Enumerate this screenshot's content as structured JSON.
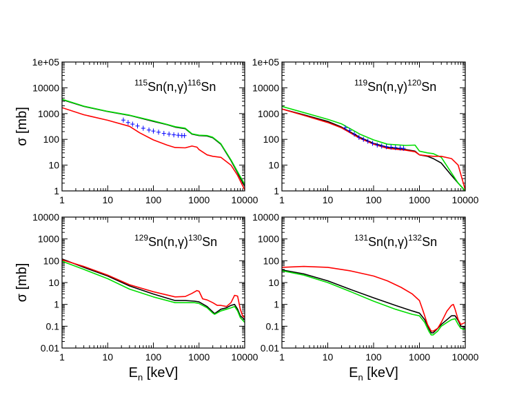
{
  "colors": {
    "black": "#000000",
    "red": "#ff0000",
    "green": "#00dd00",
    "blue": "#0000ff"
  },
  "chart_data": [
    {
      "type": "line",
      "title_parts": [
        "115",
        "Sn(n,γ)",
        "116",
        "Sn"
      ],
      "xlabel": "",
      "xlabel_sub": "",
      "ylabel": "σ [mb]",
      "xscale": "log",
      "yscale": "log",
      "xlim": [
        1,
        10000
      ],
      "ylim": [
        1,
        100000
      ],
      "xticks": [
        "1",
        "10",
        "100",
        "1000",
        "10000"
      ],
      "yticks": [
        "1",
        "10",
        "100",
        "1000",
        "10000",
        "1e+05"
      ],
      "series": [
        {
          "name": "black",
          "color": "#000000",
          "x": [
            1,
            3,
            10,
            30,
            100,
            200,
            300,
            500,
            700,
            1000,
            1500,
            2000,
            3000,
            5000,
            7000,
            10000
          ],
          "y": [
            3500,
            1900,
            1200,
            850,
            500,
            370,
            300,
            260,
            160,
            140,
            135,
            115,
            65,
            15,
            5,
            1.5
          ]
        },
        {
          "name": "green",
          "color": "#00dd00",
          "x": [
            1,
            3,
            10,
            30,
            100,
            200,
            300,
            500,
            700,
            1000,
            1500,
            2000,
            3000,
            5000,
            7000,
            10000
          ],
          "y": [
            3600,
            1950,
            1220,
            870,
            520,
            380,
            310,
            270,
            165,
            145,
            140,
            120,
            68,
            16,
            5.5,
            1.8
          ]
        },
        {
          "name": "red",
          "color": "#ff0000",
          "x": [
            1,
            3,
            10,
            30,
            50,
            100,
            200,
            300,
            500,
            700,
            900,
            1000,
            1500,
            2000,
            3000,
            5000,
            7000,
            10000
          ],
          "y": [
            1700,
            900,
            550,
            320,
            180,
            95,
            60,
            48,
            47,
            55,
            50,
            40,
            25,
            22,
            20,
            10,
            4,
            1.1
          ]
        },
        {
          "name": "experiment",
          "color": "#0000ff",
          "x": [
            22,
            28,
            35,
            45,
            60,
            80,
            100,
            130,
            170,
            220,
            280,
            350,
            420,
            480
          ],
          "y": [
            560,
            450,
            390,
            330,
            270,
            230,
            210,
            190,
            170,
            160,
            150,
            145,
            140,
            140
          ],
          "style": "errorbars"
        }
      ]
    },
    {
      "type": "line",
      "title_parts": [
        "119",
        "Sn(n,γ)",
        "120",
        "Sn"
      ],
      "xlabel": "",
      "xlabel_sub": "",
      "ylabel": "",
      "xscale": "log",
      "yscale": "log",
      "xlim": [
        1,
        10000
      ],
      "ylim": [
        1,
        100000
      ],
      "xticks": [
        "1",
        "10",
        "100",
        "1000",
        "10000"
      ],
      "yticks": [
        "1",
        "10",
        "100",
        "1000",
        "10000",
        "1e+05"
      ],
      "series": [
        {
          "name": "black",
          "color": "#000000",
          "x": [
            1,
            3,
            10,
            20,
            50,
            100,
            200,
            500,
            800,
            1000,
            1500,
            2000,
            3000,
            5000,
            7000,
            10000
          ],
          "y": [
            1500,
            900,
            500,
            300,
            120,
            70,
            50,
            40,
            35,
            25,
            22,
            18,
            12,
            4,
            2,
            1
          ]
        },
        {
          "name": "green",
          "color": "#00dd00",
          "x": [
            1,
            3,
            10,
            20,
            50,
            100,
            200,
            500,
            800,
            1000,
            1500,
            2000,
            3000,
            5000,
            7000,
            10000
          ],
          "y": [
            1900,
            1100,
            600,
            400,
            160,
            95,
            65,
            58,
            60,
            35,
            30,
            28,
            20,
            5,
            2,
            1
          ]
        },
        {
          "name": "red",
          "color": "#ff0000",
          "x": [
            1,
            3,
            10,
            20,
            50,
            100,
            200,
            500,
            800,
            1000,
            1500,
            2000,
            3000,
            5000,
            7000,
            10000
          ],
          "y": [
            1500,
            850,
            450,
            280,
            110,
            65,
            45,
            38,
            33,
            25,
            23,
            22,
            22,
            18,
            10,
            1.1
          ]
        },
        {
          "name": "experiment",
          "color": "#0000ff",
          "x": [
            24,
            30,
            38,
            48,
            60,
            75,
            95,
            120,
            150,
            190,
            240,
            300,
            380,
            450
          ],
          "y": [
            280,
            220,
            160,
            120,
            100,
            85,
            70,
            60,
            55,
            52,
            50,
            48,
            46,
            45
          ],
          "style": "errorbars"
        }
      ]
    },
    {
      "type": "line",
      "title_parts": [
        "129",
        "Sn(n,γ)",
        "130",
        "Sn"
      ],
      "xlabel": "E",
      "xlabel_sub": "n",
      "xlabel_unit": " [keV]",
      "ylabel": "σ [mb]",
      "xscale": "log",
      "yscale": "log",
      "xlim": [
        1,
        10000
      ],
      "ylim": [
        0.01,
        10000
      ],
      "xticks": [
        "1",
        "10",
        "100",
        "1000",
        "10000"
      ],
      "yticks": [
        "0.01",
        "0.1",
        "1",
        "10",
        "100",
        "1000",
        "10000"
      ],
      "series": [
        {
          "name": "black",
          "color": "#000000",
          "x": [
            1,
            3,
            10,
            30,
            100,
            300,
            500,
            800,
            1000,
            1500,
            2000,
            2200,
            3000,
            4000,
            5000,
            6000,
            7000,
            8000,
            10000
          ],
          "y": [
            120,
            50,
            20,
            7,
            3,
            1.5,
            1.5,
            1.4,
            1.3,
            0.8,
            0.45,
            0.38,
            0.6,
            0.7,
            0.9,
            1.0,
            0.6,
            0.3,
            0.2
          ]
        },
        {
          "name": "green",
          "color": "#00dd00",
          "x": [
            1,
            3,
            10,
            30,
            100,
            300,
            500,
            800,
            1000,
            1500,
            2000,
            2200,
            3000,
            4000,
            5000,
            6000,
            7000,
            8000,
            10000
          ],
          "y": [
            95,
            40,
            15,
            5,
            2.2,
            1.2,
            1.2,
            1.2,
            1.1,
            0.7,
            0.4,
            0.35,
            0.5,
            0.6,
            0.7,
            0.8,
            0.5,
            0.25,
            0.15
          ]
        },
        {
          "name": "red",
          "color": "#ff0000",
          "x": [
            1,
            3,
            10,
            30,
            100,
            300,
            500,
            700,
            900,
            1000,
            1200,
            1500,
            2000,
            2500,
            3000,
            4000,
            5000,
            6000,
            7000,
            8000,
            9000,
            10000
          ],
          "y": [
            110,
            55,
            22,
            8,
            3.8,
            2.2,
            2.3,
            3.2,
            4.3,
            4,
            1.8,
            1.6,
            1.2,
            0.9,
            0.9,
            0.8,
            1.2,
            2.6,
            2.4,
            0.6,
            0.3,
            0.25
          ]
        }
      ]
    },
    {
      "type": "line",
      "title_parts": [
        "131",
        "Sn(n,γ)",
        "132",
        "Sn"
      ],
      "xlabel": "E",
      "xlabel_sub": "n",
      "xlabel_unit": " [keV]",
      "ylabel": "",
      "xscale": "log",
      "yscale": "log",
      "xlim": [
        1,
        10000
      ],
      "ylim": [
        0.01,
        10000
      ],
      "xticks": [
        "1",
        "10",
        "100",
        "1000",
        "10000"
      ],
      "yticks": [
        "0.01",
        "0.1",
        "1",
        "10",
        "100",
        "1000",
        "10000"
      ],
      "series": [
        {
          "name": "black",
          "color": "#000000",
          "x": [
            1,
            3,
            10,
            30,
            100,
            300,
            700,
            1000,
            1300,
            1600,
            1800,
            2000,
            2500,
            3000,
            4000,
            5000,
            6000,
            7000,
            8000,
            10000
          ],
          "y": [
            38,
            25,
            12,
            5,
            2,
            0.9,
            0.5,
            0.4,
            0.2,
            0.08,
            0.05,
            0.05,
            0.08,
            0.12,
            0.2,
            0.3,
            0.3,
            0.18,
            0.1,
            0.09
          ]
        },
        {
          "name": "green",
          "color": "#00dd00",
          "x": [
            1,
            3,
            10,
            30,
            100,
            300,
            700,
            1000,
            1300,
            1600,
            1800,
            2000,
            2500,
            3000,
            4000,
            5000,
            6000,
            7000,
            8000,
            10000
          ],
          "y": [
            35,
            22,
            10,
            4,
            1.4,
            0.6,
            0.35,
            0.3,
            0.15,
            0.06,
            0.04,
            0.04,
            0.06,
            0.1,
            0.15,
            0.2,
            0.22,
            0.12,
            0.08,
            0.07
          ]
        },
        {
          "name": "red",
          "color": "#ff0000",
          "x": [
            1,
            3,
            10,
            30,
            100,
            200,
            400,
            700,
            1000,
            1200,
            1500,
            1800,
            2000,
            2500,
            3000,
            4000,
            5000,
            5500,
            6000,
            7000,
            8000,
            10000
          ],
          "y": [
            50,
            55,
            50,
            35,
            20,
            12,
            6,
            3,
            1.5,
            0.5,
            0.12,
            0.06,
            0.06,
            0.08,
            0.15,
            0.5,
            0.9,
            1.0,
            0.6,
            0.2,
            0.12,
            0.15
          ]
        }
      ]
    }
  ]
}
